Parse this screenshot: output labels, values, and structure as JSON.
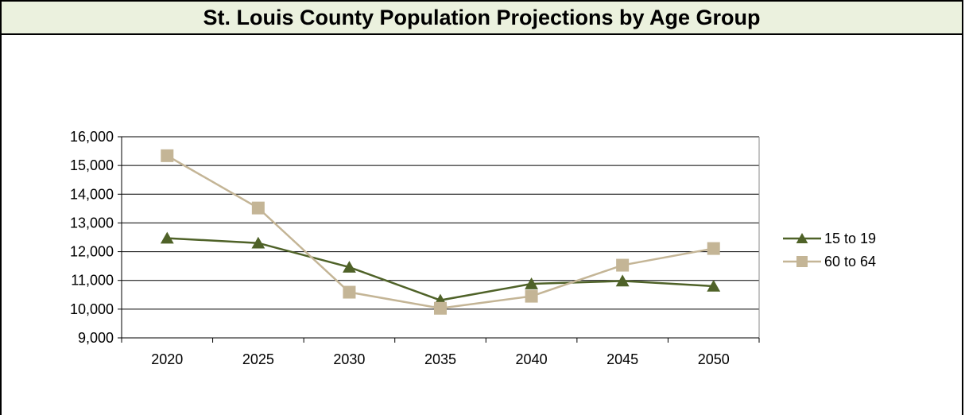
{
  "chart_data": {
    "type": "line",
    "title": "St. Louis County Population Projections by Age Group",
    "xlabel": "",
    "ylabel": "",
    "categories": [
      "2020",
      "2025",
      "2030",
      "2035",
      "2040",
      "2045",
      "2050"
    ],
    "ylim": [
      9000,
      16000
    ],
    "yticks": [
      9000,
      10000,
      11000,
      12000,
      13000,
      14000,
      15000,
      16000
    ],
    "ytick_labels": [
      "9,000",
      "10,000",
      "11,000",
      "12,000",
      "13,000",
      "14,000",
      "15,000",
      "16,000"
    ],
    "grid": true,
    "legend_position": "right",
    "series": [
      {
        "name": "15 to 19",
        "marker": "triangle",
        "color": "#4f6228",
        "values": [
          12470,
          12300,
          11460,
          10310,
          10880,
          10980,
          10800
        ]
      },
      {
        "name": "60 to 64",
        "marker": "square",
        "color": "#c4b596",
        "values": [
          15340,
          13520,
          10590,
          10030,
          10450,
          11530,
          12110
        ]
      }
    ]
  }
}
